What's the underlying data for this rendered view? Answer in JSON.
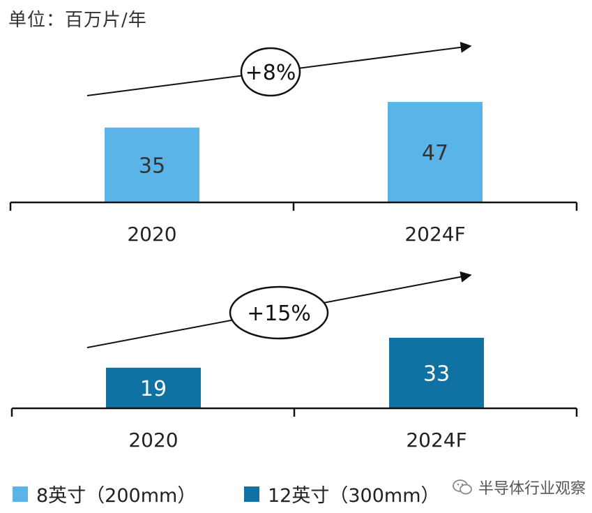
{
  "unit_label": "单位：百万片/年",
  "colors": {
    "light": "#5ab4e8",
    "dark": "#0f72a3",
    "axis": "#111111"
  },
  "chart_data": [
    {
      "type": "bar",
      "categories": [
        "2020",
        "2024F"
      ],
      "series": [
        {
          "name": "8英寸（200mm）",
          "values": [
            35,
            47
          ]
        }
      ],
      "growth_label": "+8%"
    },
    {
      "type": "bar",
      "categories": [
        "2020",
        "2024F"
      ],
      "series": [
        {
          "name": "12英寸（300mm）",
          "values": [
            19,
            33
          ]
        }
      ],
      "growth_label": "+15%"
    }
  ],
  "legend": [
    {
      "label": "8英寸（200mm）",
      "color": "#5ab4e8"
    },
    {
      "label": "12英寸（300mm）",
      "color": "#0f72a3"
    }
  ],
  "watermark": {
    "text": "半导体行业观察",
    "icon": "wechat-icon"
  }
}
